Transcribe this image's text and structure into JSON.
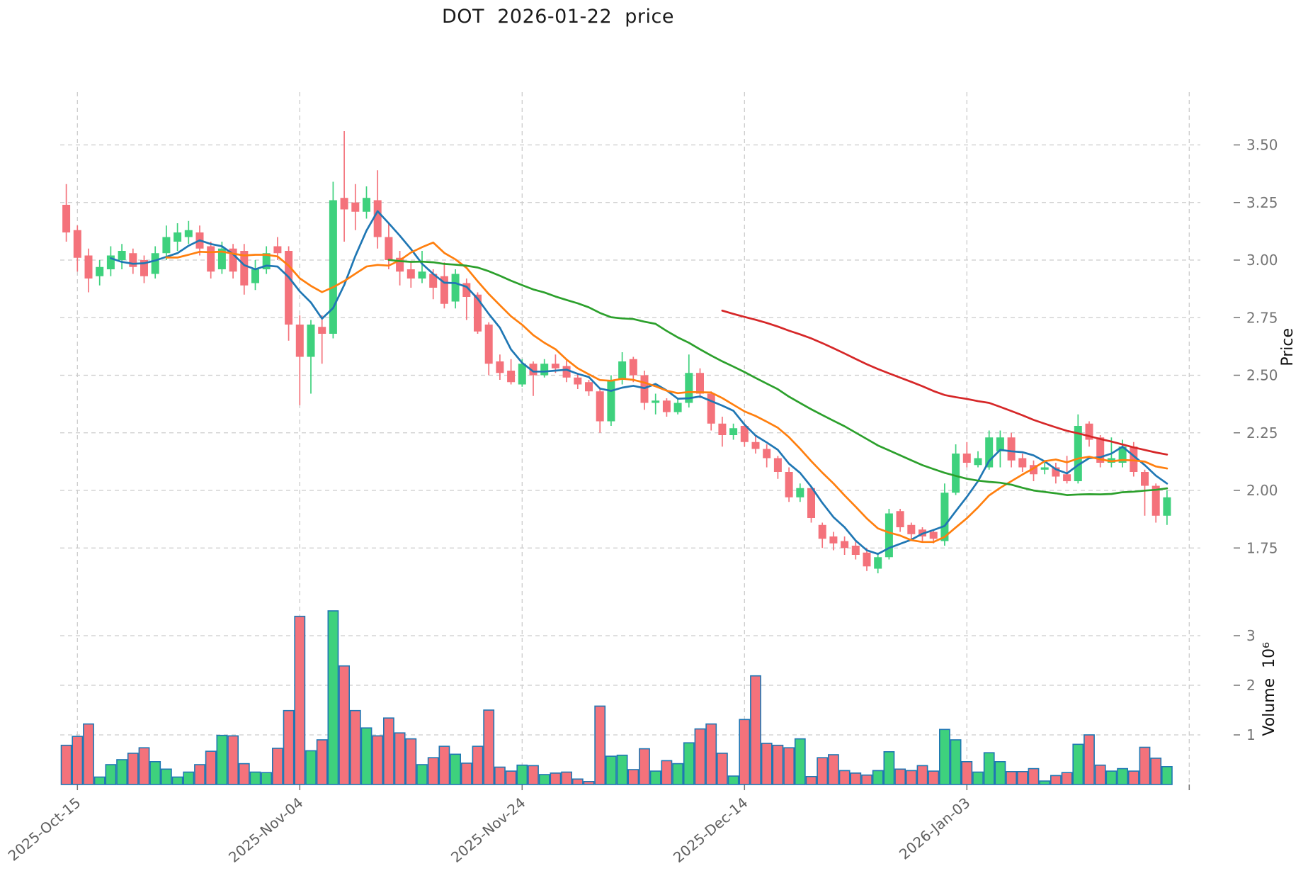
{
  "chart_data": {
    "type": "candlestick",
    "title": "DOT  2026-01-22  price",
    "ylabel": "Price",
    "ylabel2": "Volume  10⁶",
    "legend_position": "none",
    "grid": true,
    "x_ticklabels": [
      "2025-Oct-15",
      "2025-Nov-04",
      "2025-Nov-24",
      "2025-Dec-14",
      "2026-Jan-03"
    ],
    "x_tick_day_indices": [
      1,
      21,
      41,
      61,
      81
    ],
    "extra_vertical_gridline_day_index": 101,
    "price_ticks": [
      3.5,
      3.25,
      3.0,
      2.75,
      2.5,
      2.25,
      2.0,
      1.75
    ],
    "price_ylim": [
      1.62,
      3.73
    ],
    "volume_ticks": [
      1,
      2,
      3
    ],
    "volume_unit": 1000000,
    "volume_ylim": [
      0,
      3.95
    ],
    "ma_windows": [
      5,
      10,
      30,
      60
    ],
    "ma_colors": [
      "#1f77b4",
      "#ff7f0e",
      "#2ca02c",
      "#d62728"
    ],
    "colors": {
      "up": "#3ed17d",
      "down": "#f4727b",
      "volume_edge": "#1f77b4",
      "grid": "#cccccc",
      "tick_text": "#757575",
      "xtick_text": "#5f5f5f",
      "title_text": "#1a1a1a"
    },
    "candles": [
      [
        "2025-10-14",
        3.24,
        3.33,
        3.08,
        3.12,
        0.79
      ],
      [
        "2025-10-15",
        3.13,
        3.15,
        2.95,
        3.01,
        0.97
      ],
      [
        "2025-10-16",
        3.02,
        3.05,
        2.86,
        2.92,
        1.22
      ],
      [
        "2025-10-17",
        2.93,
        3.0,
        2.89,
        2.97,
        0.15
      ],
      [
        "2025-10-18",
        2.96,
        3.06,
        2.93,
        3.02,
        0.4
      ],
      [
        "2025-10-19",
        3.0,
        3.07,
        2.96,
        3.04,
        0.5
      ],
      [
        "2025-10-20",
        3.03,
        3.05,
        2.94,
        2.97,
        0.63
      ],
      [
        "2025-10-21",
        3.0,
        3.02,
        2.9,
        2.93,
        0.74
      ],
      [
        "2025-10-22",
        2.94,
        3.06,
        2.92,
        3.03,
        0.46
      ],
      [
        "2025-10-23",
        3.03,
        3.15,
        3.0,
        3.1,
        0.31
      ],
      [
        "2025-10-24",
        3.08,
        3.16,
        3.04,
        3.12,
        0.15
      ],
      [
        "2025-10-25",
        3.1,
        3.17,
        3.07,
        3.13,
        0.25
      ],
      [
        "2025-10-26",
        3.12,
        3.15,
        3.02,
        3.05,
        0.4
      ],
      [
        "2025-10-27",
        3.06,
        3.08,
        2.92,
        2.95,
        0.67
      ],
      [
        "2025-10-28",
        2.96,
        3.08,
        2.94,
        3.05,
        0.99
      ],
      [
        "2025-10-29",
        3.05,
        3.07,
        2.92,
        2.95,
        0.98
      ],
      [
        "2025-10-30",
        3.04,
        3.07,
        2.85,
        2.89,
        0.42
      ],
      [
        "2025-10-31",
        2.9,
        3.0,
        2.87,
        2.96,
        0.25
      ],
      [
        "2025-11-01",
        2.96,
        3.06,
        2.94,
        3.03,
        0.24
      ],
      [
        "2025-11-02",
        3.06,
        3.1,
        3.0,
        3.03,
        0.73
      ],
      [
        "2025-11-03",
        3.04,
        3.06,
        2.65,
        2.72,
        1.49
      ],
      [
        "2025-11-04",
        2.72,
        2.76,
        2.37,
        2.58,
        3.39
      ],
      [
        "2025-11-05",
        2.58,
        2.74,
        2.42,
        2.72,
        0.68
      ],
      [
        "2025-11-06",
        2.71,
        2.76,
        2.55,
        2.68,
        0.9
      ],
      [
        "2025-11-07",
        2.68,
        3.34,
        2.66,
        3.26,
        3.5
      ],
      [
        "2025-11-08",
        3.27,
        3.56,
        3.08,
        3.22,
        2.39
      ],
      [
        "2025-11-09",
        3.25,
        3.33,
        3.13,
        3.21,
        1.49
      ],
      [
        "2025-11-10",
        3.21,
        3.32,
        3.18,
        3.27,
        1.14
      ],
      [
        "2025-11-11",
        3.26,
        3.39,
        3.05,
        3.1,
        0.98
      ],
      [
        "2025-11-12",
        3.1,
        3.16,
        2.96,
        3.0,
        1.34
      ],
      [
        "2025-11-13",
        3.01,
        3.04,
        2.89,
        2.95,
        1.04
      ],
      [
        "2025-11-14",
        2.96,
        2.99,
        2.88,
        2.92,
        0.92
      ],
      [
        "2025-11-15",
        2.92,
        3.04,
        2.9,
        2.95,
        0.4
      ],
      [
        "2025-11-16",
        2.94,
        2.96,
        2.83,
        2.88,
        0.54
      ],
      [
        "2025-11-17",
        2.93,
        2.99,
        2.79,
        2.81,
        0.77
      ],
      [
        "2025-11-18",
        2.82,
        2.96,
        2.79,
        2.94,
        0.61
      ],
      [
        "2025-11-19",
        2.9,
        2.92,
        2.74,
        2.84,
        0.43
      ],
      [
        "2025-11-20",
        2.85,
        2.86,
        2.68,
        2.69,
        0.77
      ],
      [
        "2025-11-21",
        2.72,
        2.73,
        2.5,
        2.55,
        1.5
      ],
      [
        "2025-11-22",
        2.56,
        2.59,
        2.48,
        2.51,
        0.35
      ],
      [
        "2025-11-23",
        2.52,
        2.57,
        2.46,
        2.47,
        0.27
      ],
      [
        "2025-11-24",
        2.46,
        2.57,
        2.45,
        2.55,
        0.39
      ],
      [
        "2025-11-25",
        2.55,
        2.56,
        2.41,
        2.5,
        0.38
      ],
      [
        "2025-11-26",
        2.5,
        2.57,
        2.49,
        2.55,
        0.2
      ],
      [
        "2025-11-27",
        2.55,
        2.59,
        2.51,
        2.53,
        0.23
      ],
      [
        "2025-11-28",
        2.54,
        2.57,
        2.47,
        2.49,
        0.25
      ],
      [
        "2025-11-29",
        2.49,
        2.51,
        2.44,
        2.46,
        0.11
      ],
      [
        "2025-11-30",
        2.47,
        2.48,
        2.41,
        2.43,
        0.06
      ],
      [
        "2025-12-01",
        2.43,
        2.44,
        2.25,
        2.3,
        1.58
      ],
      [
        "2025-12-02",
        2.3,
        2.5,
        2.28,
        2.48,
        0.57
      ],
      [
        "2025-12-03",
        2.48,
        2.6,
        2.46,
        2.56,
        0.59
      ],
      [
        "2025-12-04",
        2.57,
        2.58,
        2.47,
        2.5,
        0.3
      ],
      [
        "2025-12-05",
        2.5,
        2.52,
        2.35,
        2.38,
        0.72
      ],
      [
        "2025-12-06",
        2.38,
        2.42,
        2.33,
        2.39,
        0.27
      ],
      [
        "2025-12-07",
        2.39,
        2.4,
        2.32,
        2.34,
        0.48
      ],
      [
        "2025-12-08",
        2.34,
        2.4,
        2.33,
        2.38,
        0.42
      ],
      [
        "2025-12-09",
        2.38,
        2.59,
        2.36,
        2.51,
        0.84
      ],
      [
        "2025-12-10",
        2.51,
        2.53,
        2.4,
        2.42,
        1.12
      ],
      [
        "2025-12-11",
        2.42,
        2.43,
        2.26,
        2.29,
        1.22
      ],
      [
        "2025-12-12",
        2.29,
        2.32,
        2.19,
        2.24,
        0.63
      ],
      [
        "2025-12-13",
        2.24,
        2.29,
        2.22,
        2.27,
        0.17
      ],
      [
        "2025-12-14",
        2.28,
        2.29,
        2.19,
        2.21,
        1.31
      ],
      [
        "2025-12-15",
        2.21,
        2.24,
        2.16,
        2.18,
        2.19
      ],
      [
        "2025-12-16",
        2.18,
        2.2,
        2.1,
        2.14,
        0.83
      ],
      [
        "2025-12-17",
        2.14,
        2.15,
        2.05,
        2.08,
        0.79
      ],
      [
        "2025-12-18",
        2.08,
        2.1,
        1.95,
        1.97,
        0.74
      ],
      [
        "2025-12-19",
        1.97,
        2.03,
        1.95,
        2.01,
        0.92
      ],
      [
        "2025-12-20",
        2.01,
        2.02,
        1.86,
        1.88,
        0.16
      ],
      [
        "2025-12-21",
        1.85,
        1.86,
        1.75,
        1.79,
        0.54
      ],
      [
        "2025-12-22",
        1.8,
        1.82,
        1.74,
        1.77,
        0.6
      ],
      [
        "2025-12-23",
        1.78,
        1.8,
        1.72,
        1.75,
        0.28
      ],
      [
        "2025-12-24",
        1.76,
        1.78,
        1.7,
        1.72,
        0.23
      ],
      [
        "2025-12-25",
        1.73,
        1.75,
        1.65,
        1.67,
        0.19
      ],
      [
        "2025-12-26",
        1.66,
        1.73,
        1.64,
        1.71,
        0.28
      ],
      [
        "2025-12-27",
        1.71,
        1.92,
        1.7,
        1.9,
        0.66
      ],
      [
        "2025-12-28",
        1.91,
        1.92,
        1.82,
        1.84,
        0.31
      ],
      [
        "2025-12-29",
        1.85,
        1.86,
        1.79,
        1.81,
        0.28
      ],
      [
        "2025-12-30",
        1.83,
        1.84,
        1.78,
        1.8,
        0.38
      ],
      [
        "2025-12-31",
        1.82,
        1.83,
        1.77,
        1.79,
        0.27
      ],
      [
        "2026-01-01",
        1.78,
        2.03,
        1.76,
        1.99,
        1.11
      ],
      [
        "2026-01-02",
        1.99,
        2.2,
        1.98,
        2.16,
        0.9
      ],
      [
        "2026-01-03",
        2.16,
        2.21,
        2.1,
        2.12,
        0.46
      ],
      [
        "2026-01-04",
        2.11,
        2.17,
        2.1,
        2.14,
        0.25
      ],
      [
        "2026-01-05",
        2.1,
        2.26,
        2.09,
        2.23,
        0.64
      ],
      [
        "2026-01-06",
        2.17,
        2.26,
        2.1,
        2.23,
        0.46
      ],
      [
        "2026-01-07",
        2.23,
        2.25,
        2.1,
        2.13,
        0.26
      ],
      [
        "2026-01-08",
        2.14,
        2.16,
        2.08,
        2.1,
        0.26
      ],
      [
        "2026-01-09",
        2.11,
        2.13,
        2.04,
        2.07,
        0.32
      ],
      [
        "2026-01-10",
        2.09,
        2.12,
        2.07,
        2.1,
        0.07
      ],
      [
        "2026-01-11",
        2.1,
        2.12,
        2.03,
        2.06,
        0.18
      ],
      [
        "2026-01-12",
        2.07,
        2.15,
        2.03,
        2.04,
        0.24
      ],
      [
        "2026-01-13",
        2.04,
        2.33,
        2.03,
        2.28,
        0.81
      ],
      [
        "2026-01-14",
        2.29,
        2.3,
        2.19,
        2.22,
        1.0
      ],
      [
        "2026-01-15",
        2.23,
        2.24,
        2.1,
        2.12,
        0.39
      ],
      [
        "2026-01-16",
        2.12,
        2.23,
        2.1,
        2.14,
        0.27
      ],
      [
        "2026-01-17",
        2.12,
        2.22,
        2.1,
        2.19,
        0.32
      ],
      [
        "2026-01-18",
        2.19,
        2.21,
        2.06,
        2.08,
        0.27
      ],
      [
        "2026-01-19",
        2.08,
        2.09,
        1.89,
        2.02,
        0.75
      ],
      [
        "2026-01-20",
        2.02,
        2.03,
        1.86,
        1.89,
        0.53
      ],
      [
        "2026-01-21",
        1.89,
        2.0,
        1.85,
        1.97,
        0.36
      ]
    ]
  }
}
